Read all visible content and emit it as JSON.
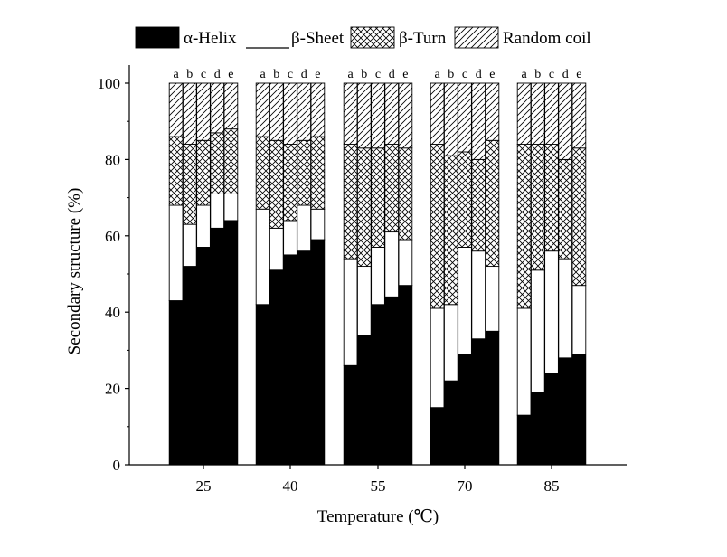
{
  "chart_data": {
    "type": "bar",
    "stacked": true,
    "xlabel": "Temperature (℃)",
    "ylabel": "Secondary structure (%)",
    "ylim": [
      0,
      100
    ],
    "yticks": [
      0,
      20,
      40,
      60,
      80,
      100
    ],
    "categories": [
      "25",
      "40",
      "55",
      "70",
      "85"
    ],
    "sub_labels": [
      "a",
      "b",
      "c",
      "d",
      "e"
    ],
    "legend_position": "top",
    "series": [
      {
        "name": "α-Helix",
        "pattern": "solid-black",
        "values": [
          [
            43,
            52,
            57,
            62,
            64
          ],
          [
            42,
            51,
            55,
            56,
            59
          ],
          [
            26,
            34,
            42,
            44,
            47
          ],
          [
            15,
            22,
            29,
            33,
            35
          ],
          [
            13,
            19,
            24,
            28,
            29
          ]
        ]
      },
      {
        "name": "β-Sheet",
        "pattern": "white",
        "values": [
          [
            25,
            11,
            11,
            9,
            7
          ],
          [
            25,
            11,
            9,
            12,
            8
          ],
          [
            28,
            18,
            15,
            17,
            12
          ],
          [
            26,
            20,
            28,
            23,
            17
          ],
          [
            28,
            32,
            32,
            26,
            18
          ]
        ]
      },
      {
        "name": "β-Turn",
        "pattern": "cross-hatch",
        "values": [
          [
            18,
            21,
            17,
            16,
            17
          ],
          [
            19,
            23,
            20,
            17,
            19
          ],
          [
            30,
            31,
            26,
            23,
            24
          ],
          [
            43,
            39,
            25,
            24,
            33
          ],
          [
            43,
            33,
            28,
            26,
            36
          ]
        ]
      },
      {
        "name": "Random coil",
        "pattern": "diagonal-hatch",
        "values": [
          [
            14,
            16,
            15,
            13,
            12
          ],
          [
            14,
            15,
            16,
            15,
            14
          ],
          [
            16,
            17,
            17,
            16,
            17
          ],
          [
            16,
            19,
            18,
            20,
            15
          ],
          [
            16,
            16,
            16,
            20,
            17
          ]
        ]
      }
    ]
  }
}
